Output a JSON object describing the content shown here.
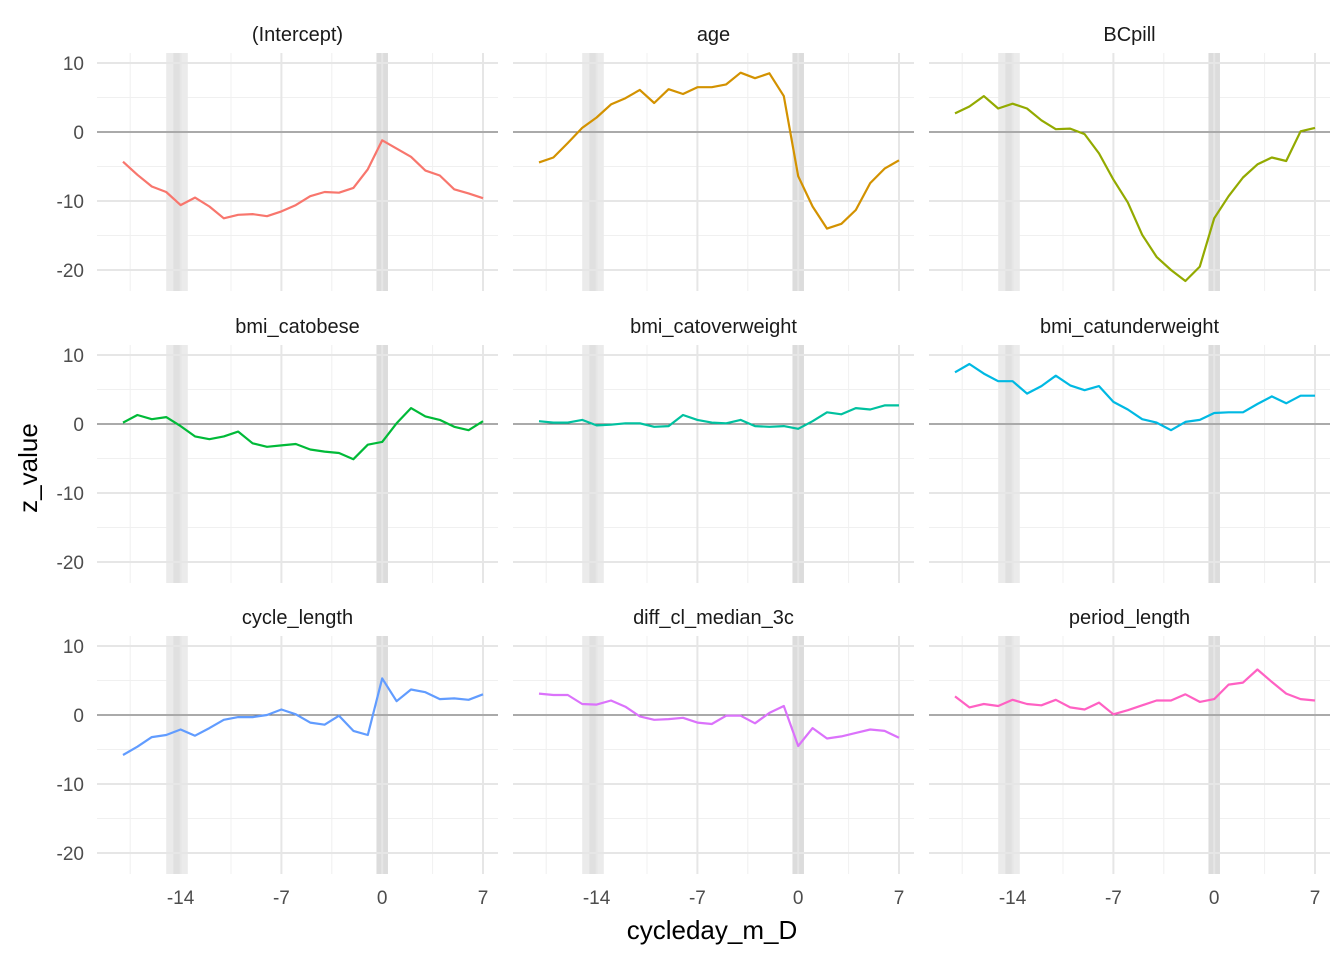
{
  "chart_data": {
    "type": "line",
    "layout": "facet-grid-3x3",
    "xlabel": "cycleday_m_D",
    "ylabel": "z_value",
    "xlim": [
      -18,
      7
    ],
    "ylim": [
      -23,
      10
    ],
    "x_ticks": [
      -14,
      -7,
      0,
      7
    ],
    "y_ticks": [
      10,
      0,
      -10,
      -20
    ],
    "grid": true,
    "reference_line_y": 0,
    "shaded_bands": [
      {
        "x0": -15,
        "x1": -13.5,
        "color": "#ebebeb"
      },
      {
        "x0": -14.5,
        "x1": -14,
        "color": "#e0e0e0"
      },
      {
        "x0": -0.4,
        "x1": 0.4,
        "color": "#dcdcdc"
      }
    ],
    "x": [
      -18,
      -17,
      -16,
      -15,
      -14,
      -13,
      -12,
      -11,
      -10,
      -9,
      -8,
      -7,
      -6,
      -5,
      -4,
      -3,
      -2,
      -1,
      0,
      1,
      2,
      3,
      4,
      5,
      6,
      7
    ],
    "panels": [
      {
        "name": "(Intercept)",
        "color": "#F8766D",
        "values": [
          -4.3,
          -6.2,
          -7.9,
          -8.7,
          -10.6,
          -9.5,
          -10.8,
          -12.5,
          -12.0,
          -11.9,
          -12.2,
          -11.5,
          -10.6,
          -9.3,
          -8.7,
          -8.8,
          -8.1,
          -5.4,
          -1.2,
          -2.4,
          -3.6,
          -5.6,
          -6.3,
          -8.3,
          -8.9,
          -9.6
        ]
      },
      {
        "name": "age",
        "color": "#D39200",
        "values": [
          -4.4,
          -3.7,
          -1.6,
          0.6,
          2.1,
          4.0,
          4.9,
          6.1,
          4.2,
          6.2,
          5.5,
          6.5,
          6.5,
          6.9,
          8.6,
          7.8,
          8.5,
          5.2,
          -6.4,
          -10.8,
          -14.0,
          -13.3,
          -11.3,
          -7.4,
          -5.3,
          -4.1
        ]
      },
      {
        "name": "BCpill",
        "color": "#93AA00",
        "values": [
          2.7,
          3.7,
          5.2,
          3.4,
          4.1,
          3.4,
          1.7,
          0.4,
          0.5,
          -0.3,
          -3.1,
          -6.9,
          -10.2,
          -14.9,
          -18.1,
          -20.0,
          -21.6,
          -19.5,
          -12.5,
          -9.3,
          -6.6,
          -4.7,
          -3.7,
          -4.2,
          0.1,
          0.6
        ]
      },
      {
        "name": "bmi_catobese",
        "color": "#00BA38",
        "values": [
          0.2,
          1.3,
          0.7,
          1.0,
          -0.3,
          -1.8,
          -2.2,
          -1.8,
          -1.1,
          -2.8,
          -3.3,
          -3.1,
          -2.9,
          -3.7,
          -4.0,
          -4.2,
          -5.1,
          -3.0,
          -2.6,
          0.1,
          2.3,
          1.1,
          0.6,
          -0.4,
          -0.9,
          0.4
        ]
      },
      {
        "name": "bmi_catoverweight",
        "color": "#00C19F",
        "values": [
          0.4,
          0.2,
          0.2,
          0.6,
          -0.2,
          -0.1,
          0.1,
          0.1,
          -0.4,
          -0.3,
          1.3,
          0.6,
          0.2,
          0.1,
          0.6,
          -0.3,
          -0.4,
          -0.3,
          -0.7,
          0.4,
          1.7,
          1.4,
          2.3,
          2.1,
          2.7,
          2.7
        ]
      },
      {
        "name": "bmi_catunderweight",
        "color": "#00B9E3",
        "values": [
          7.5,
          8.7,
          7.3,
          6.2,
          6.2,
          4.4,
          5.5,
          7.0,
          5.6,
          4.9,
          5.5,
          3.2,
          2.1,
          0.7,
          0.2,
          -0.9,
          0.3,
          0.6,
          1.6,
          1.7,
          1.7,
          2.9,
          4.0,
          3.0,
          4.1,
          4.1
        ]
      },
      {
        "name": "cycle_length",
        "color": "#619CFF",
        "values": [
          -5.8,
          -4.6,
          -3.2,
          -2.9,
          -2.1,
          -3.0,
          -1.9,
          -0.7,
          -0.3,
          -0.3,
          0.0,
          0.8,
          0.1,
          -1.1,
          -1.4,
          -0.1,
          -2.3,
          -2.9,
          5.3,
          2.0,
          3.7,
          3.3,
          2.3,
          2.4,
          2.2,
          3.0
        ]
      },
      {
        "name": "diff_cl_median_3c",
        "color": "#DB72FB",
        "values": [
          3.1,
          2.9,
          2.9,
          1.6,
          1.5,
          2.1,
          1.2,
          -0.2,
          -0.7,
          -0.6,
          -0.4,
          -1.1,
          -1.3,
          -0.1,
          -0.1,
          -1.2,
          0.3,
          1.3,
          -4.5,
          -1.9,
          -3.4,
          -3.1,
          -2.6,
          -2.1,
          -2.3,
          -3.3
        ]
      },
      {
        "name": "period_length",
        "color": "#FF61C3",
        "values": [
          2.7,
          1.1,
          1.6,
          1.3,
          2.2,
          1.6,
          1.4,
          2.2,
          1.1,
          0.8,
          1.8,
          0.1,
          0.7,
          1.4,
          2.1,
          2.1,
          3.0,
          1.9,
          2.3,
          4.4,
          4.7,
          6.6,
          4.8,
          3.1,
          2.3,
          2.1
        ]
      }
    ]
  }
}
